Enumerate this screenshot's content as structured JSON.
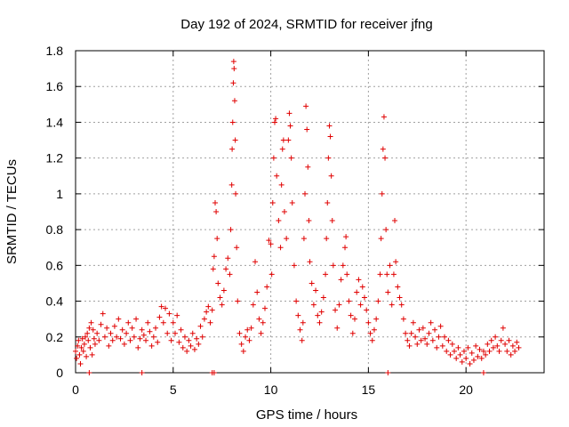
{
  "chart_data": {
    "type": "scatter",
    "title": "Day 192 of 2024, SRMTID for receiver jfng",
    "xlabel": "GPS time / hours",
    "ylabel": "SRMTID / TECUs",
    "xlim": [
      0,
      24
    ],
    "ylim": [
      0,
      1.8
    ],
    "xticks": [
      0,
      5,
      10,
      15,
      20
    ],
    "xtick_labels": [
      "0",
      "5",
      "10",
      "15",
      "20"
    ],
    "yticks": [
      0,
      0.2,
      0.4,
      0.6,
      0.8,
      1,
      1.2,
      1.4,
      1.6,
      1.8
    ],
    "ytick_labels": [
      "0",
      "0.2",
      "0.4",
      "0.6",
      "0.8",
      "1",
      "1.2",
      "1.4",
      "1.6",
      "1.8"
    ],
    "grid": true,
    "marker": "+",
    "series": [
      {
        "name": "SRMTID",
        "color": "#e00000",
        "points": [
          [
            0.0,
            0.12
          ],
          [
            0.05,
            0.08
          ],
          [
            0.1,
            0.15
          ],
          [
            0.15,
            0.18
          ],
          [
            0.2,
            0.1
          ],
          [
            0.25,
            0.05
          ],
          [
            0.3,
            0.14
          ],
          [
            0.35,
            0.19
          ],
          [
            0.4,
            0.12
          ],
          [
            0.45,
            0.16
          ],
          [
            0.5,
            0.2
          ],
          [
            0.55,
            0.09
          ],
          [
            0.6,
            0.22
          ],
          [
            0.65,
            0.18
          ],
          [
            0.7,
            0.25
          ],
          [
            0.75,
            0.14
          ],
          [
            0.8,
            0.28
          ],
          [
            0.85,
            0.1
          ],
          [
            0.9,
            0.24
          ],
          [
            0.95,
            0.19
          ],
          [
            1.0,
            0.16
          ],
          [
            1.1,
            0.22
          ],
          [
            1.2,
            0.18
          ],
          [
            1.3,
            0.27
          ],
          [
            1.4,
            0.33
          ],
          [
            1.5,
            0.2
          ],
          [
            1.6,
            0.25
          ],
          [
            1.7,
            0.15
          ],
          [
            1.8,
            0.22
          ],
          [
            1.9,
            0.18
          ],
          [
            2.0,
            0.26
          ],
          [
            2.1,
            0.2
          ],
          [
            2.2,
            0.3
          ],
          [
            2.3,
            0.19
          ],
          [
            2.4,
            0.24
          ],
          [
            2.5,
            0.16
          ],
          [
            2.6,
            0.22
          ],
          [
            2.7,
            0.28
          ],
          [
            2.8,
            0.18
          ],
          [
            2.9,
            0.25
          ],
          [
            3.0,
            0.2
          ],
          [
            3.1,
            0.3
          ],
          [
            3.2,
            0.14
          ],
          [
            3.3,
            0.19
          ],
          [
            3.4,
            0.24
          ],
          [
            3.5,
            0.21
          ],
          [
            3.6,
            0.18
          ],
          [
            3.7,
            0.28
          ],
          [
            3.8,
            0.23
          ],
          [
            3.9,
            0.15
          ],
          [
            4.0,
            0.2
          ],
          [
            4.1,
            0.25
          ],
          [
            4.2,
            0.17
          ],
          [
            4.3,
            0.31
          ],
          [
            4.4,
            0.37
          ],
          [
            4.5,
            0.28
          ],
          [
            4.6,
            0.36
          ],
          [
            4.7,
            0.22
          ],
          [
            4.8,
            0.33
          ],
          [
            4.9,
            0.18
          ],
          [
            5.0,
            0.28
          ],
          [
            5.1,
            0.22
          ],
          [
            5.2,
            0.32
          ],
          [
            5.3,
            0.17
          ],
          [
            5.4,
            0.24
          ],
          [
            5.5,
            0.14
          ],
          [
            5.6,
            0.2
          ],
          [
            5.7,
            0.12
          ],
          [
            5.8,
            0.18
          ],
          [
            5.9,
            0.15
          ],
          [
            6.0,
            0.22
          ],
          [
            6.1,
            0.13
          ],
          [
            6.2,
            0.19
          ],
          [
            6.3,
            0.16
          ],
          [
            6.4,
            0.26
          ],
          [
            6.5,
            0.2
          ],
          [
            6.6,
            0.3
          ],
          [
            6.7,
            0.34
          ],
          [
            6.8,
            0.37
          ],
          [
            6.9,
            0.28
          ],
          [
            7.0,
            0.35
          ],
          [
            7.05,
            0.58
          ],
          [
            7.1,
            0.65
          ],
          [
            7.15,
            0.95
          ],
          [
            7.2,
            0.9
          ],
          [
            7.25,
            0.75
          ],
          [
            7.3,
            0.5
          ],
          [
            7.4,
            0.42
          ],
          [
            7.5,
            0.38
          ],
          [
            7.6,
            0.46
          ],
          [
            7.7,
            0.58
          ],
          [
            7.8,
            0.64
          ],
          [
            7.9,
            0.55
          ],
          [
            7.95,
            0.8
          ],
          [
            8.0,
            1.05
          ],
          [
            8.02,
            1.25
          ],
          [
            8.05,
            1.4
          ],
          [
            8.08,
            1.62
          ],
          [
            8.1,
            1.74
          ],
          [
            8.12,
            1.7
          ],
          [
            8.15,
            1.52
          ],
          [
            8.18,
            1.3
          ],
          [
            8.2,
            1.0
          ],
          [
            8.25,
            0.7
          ],
          [
            8.3,
            0.4
          ],
          [
            8.4,
            0.22
          ],
          [
            8.5,
            0.16
          ],
          [
            8.6,
            0.12
          ],
          [
            8.7,
            0.2
          ],
          [
            8.8,
            0.24
          ],
          [
            8.9,
            0.18
          ],
          [
            9.0,
            0.25
          ],
          [
            9.1,
            0.38
          ],
          [
            9.2,
            0.62
          ],
          [
            9.3,
            0.45
          ],
          [
            9.4,
            0.3
          ],
          [
            9.5,
            0.22
          ],
          [
            9.6,
            0.28
          ],
          [
            9.7,
            0.36
          ],
          [
            9.8,
            0.48
          ],
          [
            9.9,
            0.74
          ],
          [
            10.0,
            0.72
          ],
          [
            10.05,
            0.55
          ],
          [
            10.1,
            0.95
          ],
          [
            10.15,
            1.2
          ],
          [
            10.2,
            1.4
          ],
          [
            10.25,
            1.42
          ],
          [
            10.3,
            1.1
          ],
          [
            10.4,
            0.85
          ],
          [
            10.5,
            0.7
          ],
          [
            10.55,
            1.05
          ],
          [
            10.6,
            1.25
          ],
          [
            10.65,
            1.3
          ],
          [
            10.7,
            0.9
          ],
          [
            10.8,
            0.75
          ],
          [
            10.9,
            1.3
          ],
          [
            10.95,
            1.45
          ],
          [
            11.0,
            1.38
          ],
          [
            11.05,
            1.2
          ],
          [
            11.1,
            0.95
          ],
          [
            11.2,
            0.6
          ],
          [
            11.3,
            0.4
          ],
          [
            11.4,
            0.32
          ],
          [
            11.5,
            0.24
          ],
          [
            11.6,
            0.18
          ],
          [
            11.65,
            0.28
          ],
          [
            11.7,
            0.75
          ],
          [
            11.75,
            1.0
          ],
          [
            11.8,
            1.49
          ],
          [
            11.85,
            1.36
          ],
          [
            11.9,
            1.15
          ],
          [
            11.95,
            0.85
          ],
          [
            12.0,
            0.62
          ],
          [
            12.1,
            0.5
          ],
          [
            12.2,
            0.38
          ],
          [
            12.3,
            0.46
          ],
          [
            12.4,
            0.32
          ],
          [
            12.5,
            0.28
          ],
          [
            12.6,
            0.34
          ],
          [
            12.7,
            0.42
          ],
          [
            12.8,
            0.55
          ],
          [
            12.85,
            0.75
          ],
          [
            12.9,
            0.95
          ],
          [
            12.95,
            1.2
          ],
          [
            13.0,
            1.38
          ],
          [
            13.05,
            1.32
          ],
          [
            13.1,
            1.1
          ],
          [
            13.15,
            0.85
          ],
          [
            13.2,
            0.6
          ],
          [
            13.3,
            0.35
          ],
          [
            13.4,
            0.25
          ],
          [
            13.5,
            0.38
          ],
          [
            13.6,
            0.52
          ],
          [
            13.7,
            0.6
          ],
          [
            13.8,
            0.7
          ],
          [
            13.85,
            0.76
          ],
          [
            13.9,
            0.55
          ],
          [
            14.0,
            0.4
          ],
          [
            14.1,
            0.32
          ],
          [
            14.2,
            0.22
          ],
          [
            14.3,
            0.3
          ],
          [
            14.4,
            0.45
          ],
          [
            14.5,
            0.52
          ],
          [
            14.6,
            0.38
          ],
          [
            14.7,
            0.48
          ],
          [
            14.8,
            0.42
          ],
          [
            14.9,
            0.35
          ],
          [
            15.0,
            0.28
          ],
          [
            15.1,
            0.22
          ],
          [
            15.2,
            0.18
          ],
          [
            15.3,
            0.24
          ],
          [
            15.4,
            0.3
          ],
          [
            15.5,
            0.4
          ],
          [
            15.6,
            0.55
          ],
          [
            15.65,
            0.75
          ],
          [
            15.7,
            1.0
          ],
          [
            15.75,
            1.25
          ],
          [
            15.8,
            1.43
          ],
          [
            15.85,
            1.2
          ],
          [
            15.9,
            0.8
          ],
          [
            15.95,
            0.55
          ],
          [
            16.0,
            0.45
          ],
          [
            16.1,
            0.6
          ],
          [
            16.2,
            0.38
          ],
          [
            16.3,
            0.55
          ],
          [
            16.35,
            0.85
          ],
          [
            16.4,
            0.62
          ],
          [
            16.5,
            0.48
          ],
          [
            16.6,
            0.42
          ],
          [
            16.7,
            0.38
          ],
          [
            16.8,
            0.3
          ],
          [
            16.9,
            0.22
          ],
          [
            17.0,
            0.18
          ],
          [
            17.1,
            0.15
          ],
          [
            17.2,
            0.22
          ],
          [
            17.3,
            0.28
          ],
          [
            17.4,
            0.2
          ],
          [
            17.5,
            0.16
          ],
          [
            17.6,
            0.24
          ],
          [
            17.7,
            0.18
          ],
          [
            17.8,
            0.25
          ],
          [
            17.9,
            0.19
          ],
          [
            18.0,
            0.16
          ],
          [
            18.1,
            0.22
          ],
          [
            18.2,
            0.28
          ],
          [
            18.3,
            0.18
          ],
          [
            18.4,
            0.24
          ],
          [
            18.5,
            0.14
          ],
          [
            18.6,
            0.2
          ],
          [
            18.7,
            0.26
          ],
          [
            18.8,
            0.15
          ],
          [
            18.9,
            0.2
          ],
          [
            19.0,
            0.12
          ],
          [
            19.1,
            0.18
          ],
          [
            19.2,
            0.1
          ],
          [
            19.3,
            0.16
          ],
          [
            19.4,
            0.12
          ],
          [
            19.5,
            0.08
          ],
          [
            19.6,
            0.14
          ],
          [
            19.7,
            0.1
          ],
          [
            19.8,
            0.06
          ],
          [
            19.9,
            0.12
          ],
          [
            20.0,
            0.08
          ],
          [
            20.1,
            0.14
          ],
          [
            20.2,
            0.05
          ],
          [
            20.3,
            0.11
          ],
          [
            20.4,
            0.07
          ],
          [
            20.5,
            0.15
          ],
          [
            20.6,
            0.09
          ],
          [
            20.7,
            0.13
          ],
          [
            20.8,
            0.08
          ],
          [
            20.9,
            0.12
          ],
          [
            21.0,
            0.1
          ],
          [
            21.1,
            0.16
          ],
          [
            21.2,
            0.12
          ],
          [
            21.3,
            0.18
          ],
          [
            21.4,
            0.14
          ],
          [
            21.5,
            0.2
          ],
          [
            21.6,
            0.15
          ],
          [
            21.7,
            0.12
          ],
          [
            21.8,
            0.18
          ],
          [
            21.9,
            0.25
          ],
          [
            22.0,
            0.16
          ],
          [
            22.1,
            0.12
          ],
          [
            22.2,
            0.18
          ],
          [
            22.3,
            0.1
          ],
          [
            22.4,
            0.15
          ],
          [
            22.5,
            0.12
          ],
          [
            22.6,
            0.17
          ],
          [
            22.7,
            0.14
          ],
          [
            0.7,
            0.0
          ],
          [
            3.4,
            0.0
          ],
          [
            7.0,
            0.0
          ],
          [
            7.1,
            0.0
          ],
          [
            16.0,
            0.0
          ],
          [
            20.9,
            0.0
          ]
        ]
      }
    ]
  }
}
